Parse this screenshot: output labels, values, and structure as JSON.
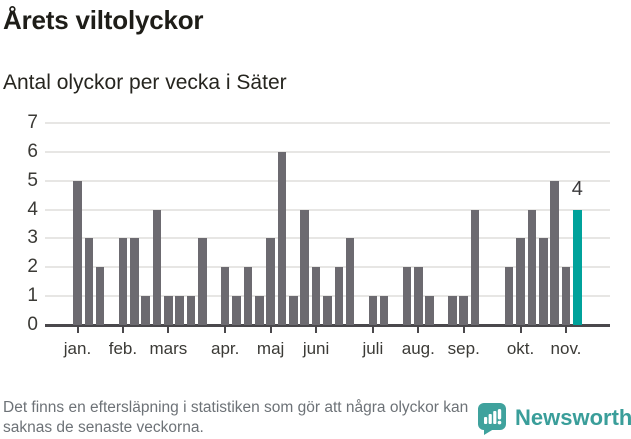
{
  "header": {
    "title": "Årets viltolyckor",
    "subtitle": "Antal olyckor per vecka i Säter"
  },
  "chart_data": {
    "type": "bar",
    "title": "Årets viltolyckor",
    "subtitle": "Antal olyckor per vecka i Säter",
    "x_unit": "week",
    "values": [
      5,
      3,
      2,
      0,
      3,
      3,
      1,
      4,
      1,
      1,
      1,
      3,
      0,
      2,
      1,
      2,
      1,
      3,
      6,
      1,
      4,
      2,
      1,
      2,
      3,
      0,
      1,
      1,
      0,
      2,
      2,
      1,
      0,
      1,
      1,
      4,
      0,
      0,
      2,
      3,
      4,
      3,
      5,
      2,
      4
    ],
    "highlight": {
      "index": 44,
      "value": 4,
      "label": "4",
      "color": "#00a29b"
    },
    "bar_color": "#6c6a70",
    "ylim": [
      0,
      7
    ],
    "yticks": [
      0,
      1,
      2,
      3,
      4,
      5,
      6,
      7
    ],
    "grid": true,
    "legend": "none",
    "month_ticks": [
      {
        "label": "jan.",
        "week": 1
      },
      {
        "label": "feb.",
        "week": 5
      },
      {
        "label": "mars",
        "week": 9
      },
      {
        "label": "apr.",
        "week": 14
      },
      {
        "label": "maj",
        "week": 18
      },
      {
        "label": "juni",
        "week": 22
      },
      {
        "label": "juli",
        "week": 27
      },
      {
        "label": "aug.",
        "week": 31
      },
      {
        "label": "sep.",
        "week": 35
      },
      {
        "label": "okt.",
        "week": 40
      },
      {
        "label": "nov.",
        "week": 44
      }
    ]
  },
  "footer": {
    "note": "Det finns en eftersläpning i statistiken som gör att några olyckor kan saknas de senaste veckorna.",
    "brand": "Newsworthy",
    "brand_color": "#3a9e9a",
    "logo_color": "#3fa29d"
  }
}
